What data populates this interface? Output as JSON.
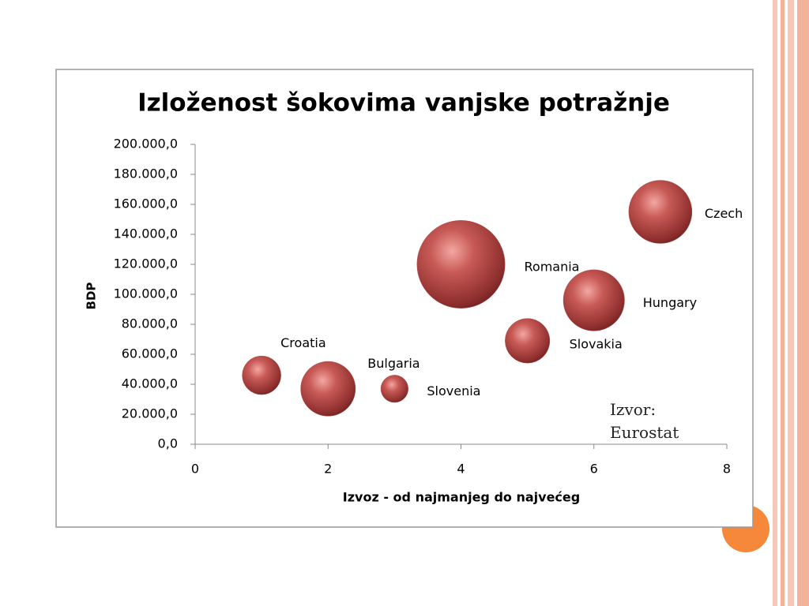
{
  "chart_data": {
    "type": "bubble",
    "title": "Izloženost šokovima vanjske potražnje",
    "x_label": "Izvoz - od najmanjeg  do najvećeg",
    "y_label": "BDP",
    "annotation": "Izvor: Eurostat",
    "color": "#b84a4a",
    "series": [
      {
        "name": "BDP",
        "labels": [
          "Croatia",
          "Bulgaria",
          "Slovenia",
          "Romania",
          "Slovakia",
          "Hungary",
          "Czech"
        ],
        "x": [
          1,
          2,
          3,
          4,
          5,
          6,
          7
        ],
        "y": [
          46000,
          37000,
          37000,
          120000,
          69000,
          96000,
          155000
        ],
        "size": [
          6,
          12,
          3,
          31,
          8,
          15,
          16
        ]
      }
    ],
    "xlim": [
      0,
      8
    ],
    "xticks": [
      0,
      2,
      4,
      6,
      8
    ],
    "ylim": [
      0,
      200000
    ],
    "yticks": [
      {
        "value": 0,
        "label": "0,0"
      },
      {
        "value": 20000,
        "label": "20.000,0"
      },
      {
        "value": 40000,
        "label": "40.000,0"
      },
      {
        "value": 60000,
        "label": "60.000,0"
      },
      {
        "value": 80000,
        "label": "80.000,0"
      },
      {
        "value": 100000,
        "label": "100.000,0"
      },
      {
        "value": 120000,
        "label": "120.000,0"
      },
      {
        "value": 140000,
        "label": "140.000,0"
      },
      {
        "value": 160000,
        "label": "160.000,0"
      },
      {
        "value": 180000,
        "label": "180.000,0"
      },
      {
        "value": 200000,
        "label": "200.000,0"
      }
    ]
  }
}
